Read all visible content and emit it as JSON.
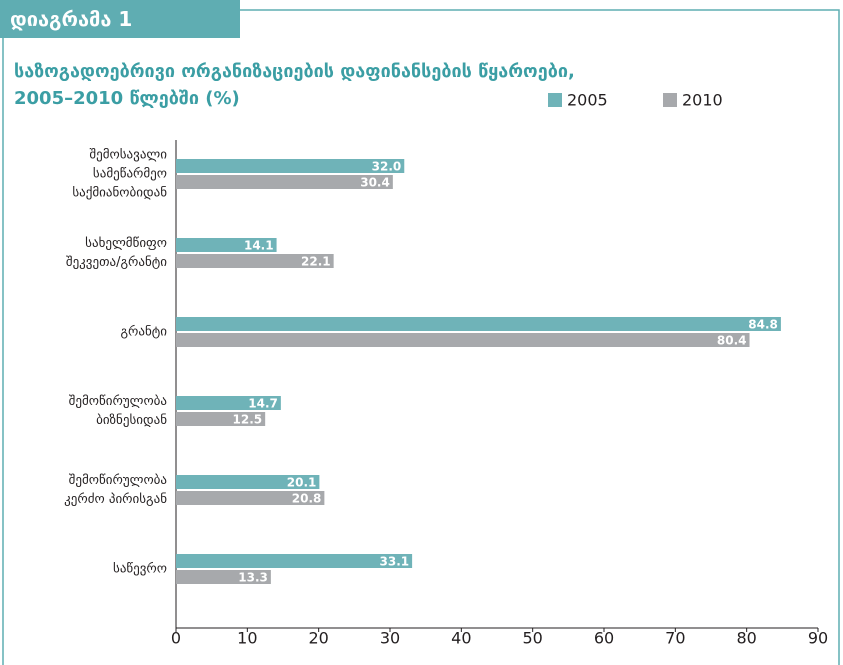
{
  "chart_data": {
    "type": "hbar",
    "badge": "დიაგრამა 1",
    "title": "საზოგადოებრივი ორგანიზაციების დაფინანსების წყაროები,\n2005–2010 წლებში (%)",
    "categories": [
      "შემოსავალი\nსამეწარმეო\nსაქმიანობიდან",
      "სახელმწიფო\nშეკვეთა/გრანტი",
      "გრანტი",
      "შემოწირულობა\nბიზნესიდან",
      "შემოწირულობა\nკერძო პირისგან",
      "საწევრო"
    ],
    "series": [
      {
        "name": "2005",
        "color": "#6fb3b8",
        "values": [
          32.0,
          14.1,
          84.8,
          14.7,
          20.1,
          33.1
        ],
        "value_labels": [
          "32.0",
          "14.1",
          "84.8",
          "14.7",
          "20.1",
          "33.1"
        ]
      },
      {
        "name": "2010",
        "color": "#a7a9ac",
        "values": [
          30.4,
          22.1,
          80.4,
          12.5,
          20.8,
          13.3
        ],
        "value_labels": [
          "30.4",
          "22.1",
          "80.4",
          "12.5",
          "20.8",
          "13.3"
        ]
      }
    ],
    "xlim": [
      0,
      90
    ],
    "xticks": [
      0,
      10,
      20,
      30,
      40,
      50,
      60,
      70,
      80,
      90
    ],
    "grid": false
  }
}
